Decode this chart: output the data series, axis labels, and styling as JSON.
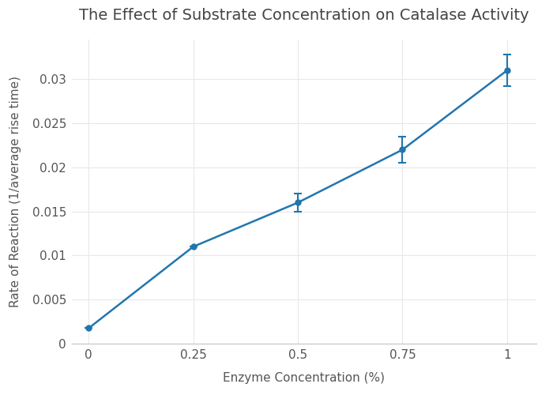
{
  "title": "The Effect of Substrate Concentration on Catalase Activity",
  "xlabel": "Enzyme Concentration (%)",
  "ylabel": "Rate of Reaction (1/average rise time)",
  "x": [
    0,
    0.25,
    0.5,
    0.75,
    1.0
  ],
  "y": [
    0.00175,
    0.011,
    0.016,
    0.022,
    0.031
  ],
  "yerr": [
    0.0,
    0.0,
    0.001,
    0.0015,
    0.0018
  ],
  "line_color": "#2176ae",
  "marker_color": "#2176ae",
  "background_color": "#ffffff",
  "grid_color": "#e8e8e8",
  "title_color": "#444444",
  "label_color": "#555555",
  "tick_color": "#555555",
  "spine_color": "#cccccc",
  "xlim": [
    -0.04,
    1.07
  ],
  "ylim": [
    0,
    0.0345
  ],
  "yticks": [
    0,
    0.005,
    0.01,
    0.015,
    0.02,
    0.025,
    0.03
  ],
  "xticks": [
    0,
    0.25,
    0.5,
    0.75,
    1.0
  ],
  "marker_size": 5,
  "line_width": 1.8,
  "title_fontsize": 14,
  "label_fontsize": 11,
  "tick_fontsize": 11
}
